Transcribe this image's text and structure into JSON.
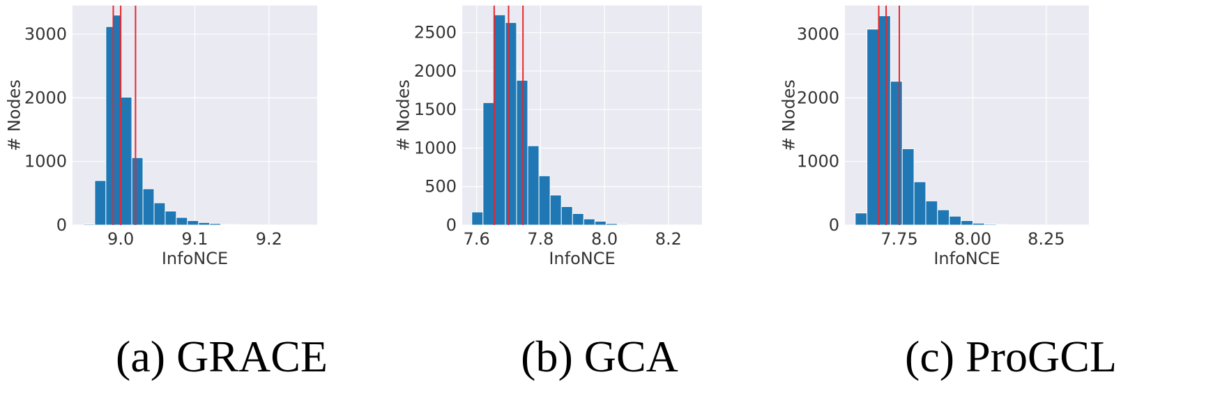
{
  "chart_data": [
    {
      "type": "histogram",
      "caption": "(a) GRACE",
      "xlabel": "InfoNCE",
      "ylabel": "# Nodes",
      "xlim": [
        8.935,
        9.265
      ],
      "ylim": [
        0,
        3450
      ],
      "xticks": [
        9.0,
        9.1,
        9.2
      ],
      "xtick_labels": [
        "9.0",
        "9.1",
        "9.2"
      ],
      "yticks": [
        0,
        1000,
        2000,
        3000
      ],
      "ytick_labels": [
        "0",
        "1000",
        "2000",
        "3000"
      ],
      "bin_edges": [
        8.95,
        8.965,
        8.98,
        8.99,
        9.0,
        9.015,
        9.03,
        9.045,
        9.06,
        9.075,
        9.09,
        9.105,
        9.12,
        9.135,
        9.15,
        9.165,
        9.18,
        9.195,
        9.21,
        9.225,
        9.24,
        9.255
      ],
      "values": [
        15,
        700,
        3120,
        3300,
        2010,
        1060,
        570,
        350,
        220,
        120,
        70,
        40,
        25,
        10,
        8,
        5,
        3,
        3,
        2,
        1,
        1
      ],
      "vlines": [
        8.99,
        9.0,
        9.02
      ],
      "bar_color": "#1f77b4",
      "vline_color": "#e8272b",
      "background": "#eaeaf2",
      "grid": true
    },
    {
      "type": "histogram",
      "caption": "(b) GCA",
      "xlabel": "InfoNCE",
      "ylabel": "# Nodes",
      "xlim": [
        7.555,
        8.305
      ],
      "ylim": [
        0,
        2850
      ],
      "xticks": [
        7.6,
        7.8,
        8.0,
        8.2
      ],
      "xtick_labels": [
        "7.6",
        "7.8",
        "8.0",
        "8.2"
      ],
      "yticks": [
        0,
        500,
        1000,
        1500,
        2000,
        2500
      ],
      "ytick_labels": [
        "0",
        "500",
        "1000",
        "1500",
        "2000",
        "2500"
      ],
      "bin_edges": [
        7.585,
        7.62,
        7.655,
        7.69,
        7.725,
        7.76,
        7.795,
        7.83,
        7.865,
        7.9,
        7.935,
        7.97,
        8.005,
        8.04,
        8.075,
        8.11,
        8.145,
        8.18,
        8.215,
        8.25,
        8.285
      ],
      "values": [
        170,
        1590,
        2730,
        2630,
        1880,
        1030,
        640,
        390,
        240,
        150,
        80,
        50,
        20,
        10,
        5,
        3,
        2,
        1,
        1,
        1
      ],
      "vlines": [
        7.655,
        7.7,
        7.745
      ],
      "bar_color": "#1f77b4",
      "vline_color": "#e8272b",
      "background": "#eaeaf2",
      "grid": true
    },
    {
      "type": "histogram",
      "caption": "(c) ProGCL",
      "xlabel": "InfoNCE",
      "ylabel": "# Nodes",
      "xlim": [
        7.565,
        8.395
      ],
      "ylim": [
        0,
        3450
      ],
      "xticks": [
        7.75,
        8.0,
        8.25
      ],
      "xtick_labels": [
        "7.75",
        "8.00",
        "8.25"
      ],
      "yticks": [
        0,
        1000,
        2000,
        3000
      ],
      "ytick_labels": [
        "0",
        "1000",
        "2000",
        "3000"
      ],
      "bin_edges": [
        7.6,
        7.64,
        7.68,
        7.72,
        7.76,
        7.8,
        7.84,
        7.88,
        7.92,
        7.96,
        8.0,
        8.04,
        8.08,
        8.12,
        8.16,
        8.2,
        8.24,
        8.28,
        8.32,
        8.36
      ],
      "values": [
        190,
        3080,
        3290,
        2260,
        1200,
        680,
        380,
        240,
        140,
        70,
        30,
        15,
        8,
        5,
        3,
        2,
        1,
        1,
        1
      ],
      "vlines": [
        7.68,
        7.705,
        7.75
      ],
      "bar_color": "#1f77b4",
      "vline_color": "#e8272b",
      "background": "#eaeaf2",
      "grid": true
    }
  ]
}
